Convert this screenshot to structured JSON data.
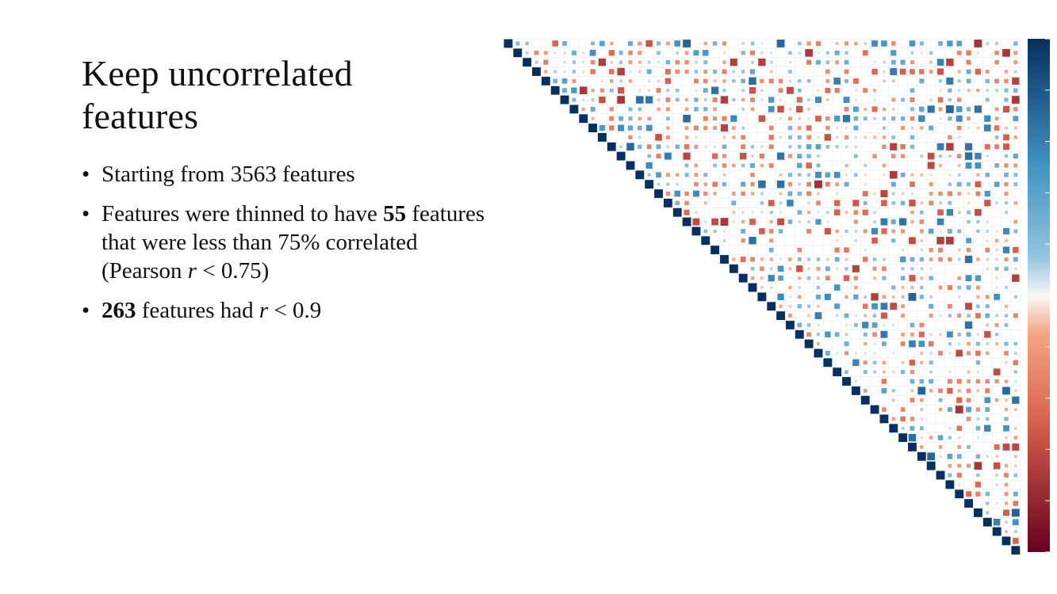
{
  "slide": {
    "title_line1": "Keep uncorrelated",
    "title_line2": "features",
    "bullets": [
      {
        "text": "Starting from 3563 features"
      },
      {
        "pre": "Features were thinned to have ",
        "bold": "55",
        "post": " features",
        "line2": "that were less than 75% correlated",
        "line3_pre": "(Pearson ",
        "line3_var": "r",
        "line3_post": " < 0.75)"
      },
      {
        "bold": "263",
        "pre": " features had ",
        "var": "r",
        "post": " < 0.9"
      }
    ],
    "bullet_symbol": "•"
  },
  "chart_data": {
    "type": "heatmap",
    "subtype": "correlation-upper-triangle",
    "n_variables": 55,
    "value_range": [
      -1,
      1
    ],
    "diagonal_value": 1,
    "colorscale": {
      "positive": "#053061",
      "mid_positive": "#4393c3",
      "neutral": "#f7f7f7",
      "mid_negative": "#d6604d",
      "negative": "#67001f"
    },
    "grid": true,
    "colorbar": "right",
    "seed": 20240611
  }
}
